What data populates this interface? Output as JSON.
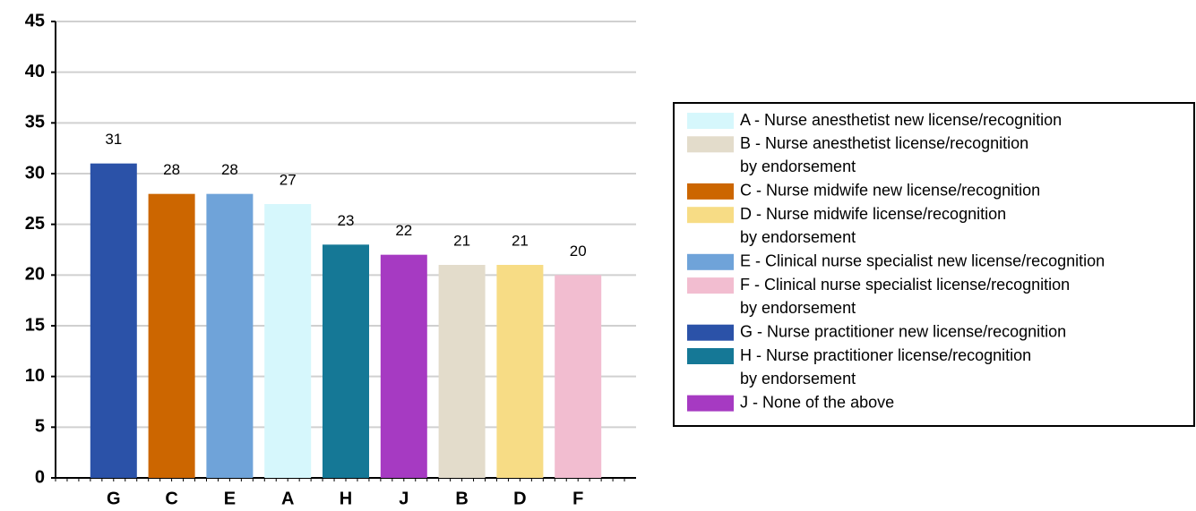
{
  "chart_data": {
    "type": "bar",
    "categories": [
      "G",
      "C",
      "E",
      "A",
      "H",
      "J",
      "B",
      "D",
      "F"
    ],
    "values": [
      31,
      28,
      28,
      27,
      23,
      22,
      21,
      21,
      20
    ],
    "colors": [
      "#2b52a8",
      "#cc6600",
      "#6fa3d9",
      "#d6f7fc",
      "#157896",
      "#a63ac2",
      "#e3dccb",
      "#f7dc85",
      "#f2bdd0"
    ],
    "ylim": [
      0,
      45
    ],
    "yticks": [
      0,
      5,
      10,
      15,
      20,
      25,
      30,
      35,
      40,
      45
    ],
    "grid": true,
    "legend": [
      {
        "lines": [
          "A - Nurse anesthetist new license/recognition"
        ],
        "color": "#d6f7fc"
      },
      {
        "lines": [
          "B - Nurse anesthetist license/recognition",
          "by endorsement"
        ],
        "color": "#e3dccb"
      },
      {
        "lines": [
          "C - Nurse midwife new license/recognition"
        ],
        "color": "#cc6600"
      },
      {
        "lines": [
          "D - Nurse midwife license/recognition",
          "by endorsement"
        ],
        "color": "#f7dc85"
      },
      {
        "lines": [
          "E - Clinical nurse specialist new license/recognition"
        ],
        "color": "#6fa3d9"
      },
      {
        "lines": [
          "F - Clinical nurse specialist license/recognition",
          "by endorsement"
        ],
        "color": "#f2bdd0"
      },
      {
        "lines": [
          "G - Nurse practitioner new license/recognition"
        ],
        "color": "#2b52a8"
      },
      {
        "lines": [
          "H - Nurse practitioner license/recognition",
          "by endorsement"
        ],
        "color": "#157896"
      },
      {
        "lines": [
          "J - None of the above"
        ],
        "color": "#a63ac2"
      }
    ]
  }
}
